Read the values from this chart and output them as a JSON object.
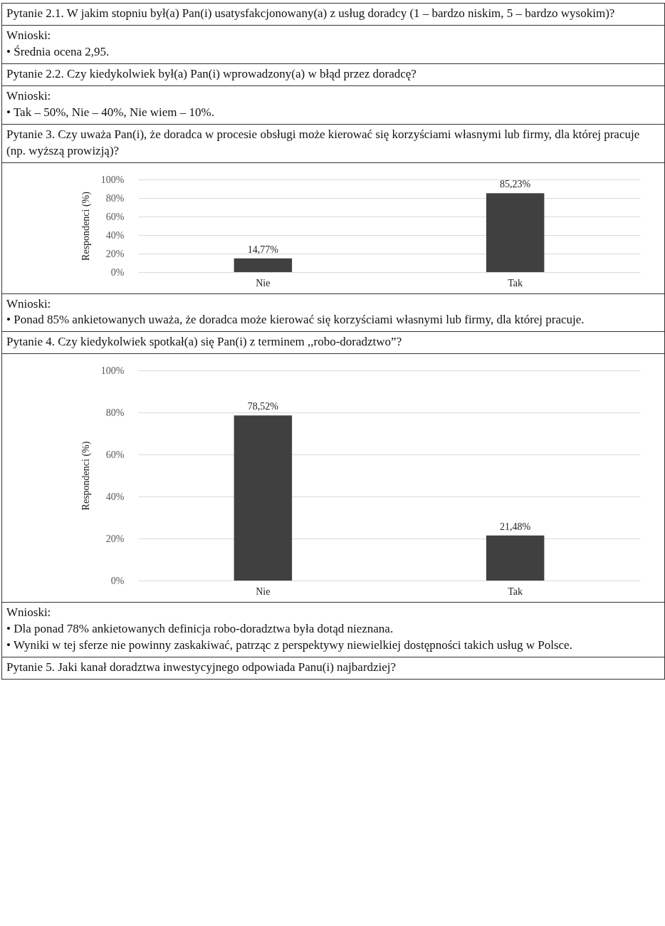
{
  "chart_data": [
    {
      "type": "other",
      "annotations": [
        "Pytanie 2.1. W jakim stopniu był(a) Pan(i) usatysfakcjonowany(a) z usług doradcy (1 – bardzo niskim, 5 – bardzo wysokim)?",
        "Wnioski:\n• Średnia ocena 2,95.",
        "Pytanie 2.2. Czy kiedykolwiek był(a) Pan(i) wprowadzony(a) w błąd przez doradcę?",
        "Wnioski:\n• Tak – 50%, Nie – 40%, Nie wiem – 10%.",
        "Pytanie 3. Czy uważa Pan(i), że doradca w procesie obsługi może kierować się korzyściami własnymi lub firmy, dla której pracuje (np. wyższą prowizją)?"
      ]
    },
    {
      "type": "bar",
      "ylabel": "Respondenci (%)",
      "categories": [
        "Nie",
        "Tak"
      ],
      "values": [
        14.77,
        85.23
      ],
      "value_labels": [
        "14,77%",
        "85,23%"
      ],
      "color": "#404040",
      "ylim": [
        0,
        100
      ],
      "yticks": [
        {
          "value": 0,
          "label": "0%"
        },
        {
          "value": 20,
          "label": "20%"
        },
        {
          "value": 40,
          "label": "40%"
        },
        {
          "value": 60,
          "label": "60%"
        },
        {
          "value": 80,
          "label": "80%"
        },
        {
          "value": 100,
          "label": "100%"
        }
      ],
      "grid": "y"
    },
    {
      "type": "other",
      "annotations": [
        "Wnioski:\n• Ponad 85% ankietowanych uważa, że doradca może kierować się korzyściami własnymi lub firmy, dla której pracuje.",
        "Pytanie 4. Czy kiedykolwiek spotkał(a) się Pan(i) z terminem ,,robo-doradztwo”?"
      ]
    },
    {
      "type": "bar",
      "ylabel": "Respondenci (%)",
      "categories": [
        "Nie",
        "Tak"
      ],
      "values": [
        78.52,
        21.48
      ],
      "value_labels": [
        "78,52%",
        "21,48%"
      ],
      "color": "#404040",
      "ylim": [
        0,
        100
      ],
      "yticks": [
        {
          "value": 0,
          "label": "0%"
        },
        {
          "value": 20,
          "label": "20%"
        },
        {
          "value": 40,
          "label": "40%"
        },
        {
          "value": 60,
          "label": "60%"
        },
        {
          "value": 80,
          "label": "80%"
        },
        {
          "value": 100,
          "label": "100%"
        }
      ],
      "grid": "y"
    },
    {
      "type": "other",
      "annotations": [
        "Wnioski:\n• Dla ponad 78% ankietowanych definicja robo-doradztwa była dotąd nieznana.\n• Wyniki w tej sferze nie powinny zaskakiwać, patrząc z perspektywy niewielkiej dostępności takich usług w Polsce.",
        "Pytanie 5. Jaki kanał doradztwa inwestycyjnego odpowiada Panu(i) najbardziej?"
      ]
    }
  ]
}
